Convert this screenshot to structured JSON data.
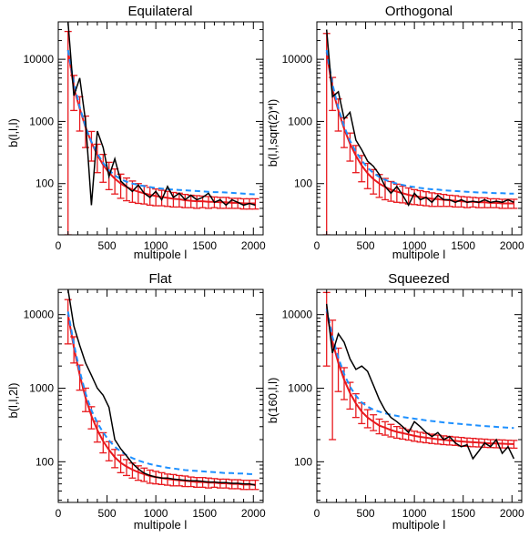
{
  "colors": {
    "data": "#000000",
    "theory": "#1e90ff",
    "sim_mean": "#e8191e",
    "frame": "#000000"
  },
  "chart_data": [
    {
      "type": "line",
      "title": "Equilateral",
      "xlabel": "multipole l",
      "ylabel": "b(l,l,l)",
      "yscale": "log",
      "xlim": [
        0,
        2100
      ],
      "ylim": [
        15,
        40000
      ],
      "xticks": [
        0,
        500,
        1000,
        1500,
        2000
      ],
      "yticks": [
        100,
        1000,
        10000
      ],
      "x": [
        100,
        160,
        220,
        280,
        340,
        400,
        460,
        520,
        580,
        640,
        700,
        760,
        820,
        880,
        940,
        1000,
        1060,
        1120,
        1180,
        1240,
        1300,
        1360,
        1420,
        1480,
        1540,
        1600,
        1660,
        1720,
        1780,
        1840,
        1900,
        1960,
        2020
      ],
      "series": [
        {
          "role": "data",
          "values": [
            40000,
            2600,
            5000,
            1000,
            45,
            700,
            380,
            130,
            250,
            110,
            90,
            75,
            95,
            70,
            60,
            75,
            55,
            90,
            60,
            70,
            55,
            65,
            55,
            60,
            70,
            50,
            55,
            45,
            55,
            50,
            45,
            48,
            45
          ]
        },
        {
          "role": "theory",
          "values": [
            14000,
            4200,
            1700,
            820,
            470,
            305,
            215,
            165,
            135,
            118,
            107,
            100,
            95,
            91,
            88,
            85,
            83,
            81,
            80,
            79,
            78,
            77,
            76,
            75,
            74,
            73,
            73,
            72,
            71,
            70,
            69,
            68,
            67
          ]
        },
        {
          "role": "sim_mean",
          "values": [
            14000,
            3500,
            1600,
            800,
            460,
            290,
            200,
            150,
            120,
            100,
            88,
            80,
            74,
            70,
            66,
            63,
            61,
            59,
            57,
            56,
            54,
            53,
            52,
            52,
            51,
            51,
            50,
            50,
            49,
            49,
            48,
            48,
            48
          ],
          "errors": [
            13999,
            2000,
            900,
            420,
            230,
            140,
            95,
            70,
            52,
            42,
            35,
            30,
            26,
            23,
            21,
            19,
            17,
            16,
            15,
            14,
            13,
            12,
            12,
            11,
            11,
            10,
            10,
            10,
            9,
            9,
            9,
            9,
            9
          ]
        }
      ]
    },
    {
      "type": "line",
      "title": "Orthogonal",
      "xlabel": "multipole l",
      "ylabel": "b(l,l,sqrt(2)*l)",
      "yscale": "log",
      "xlim": [
        0,
        2100
      ],
      "ylim": [
        15,
        40000
      ],
      "xticks": [
        0,
        500,
        1000,
        1500,
        2000
      ],
      "yticks": [
        100,
        1000,
        10000
      ],
      "x": [
        100,
        160,
        220,
        280,
        340,
        400,
        460,
        520,
        580,
        640,
        700,
        760,
        820,
        880,
        940,
        1000,
        1060,
        1120,
        1180,
        1240,
        1300,
        1360,
        1420,
        1480,
        1540,
        1600,
        1660,
        1720,
        1780,
        1840,
        1900,
        1960,
        2020
      ],
      "series": [
        {
          "role": "data",
          "values": [
            30000,
            2500,
            3000,
            1100,
            1400,
            500,
            350,
            230,
            190,
            140,
            90,
            70,
            90,
            65,
            45,
            70,
            55,
            60,
            50,
            65,
            55,
            55,
            50,
            55,
            50,
            52,
            50,
            55,
            50,
            52,
            50,
            55,
            50
          ]
        },
        {
          "role": "theory",
          "values": [
            14000,
            4000,
            1650,
            830,
            490,
            325,
            235,
            180,
            148,
            128,
            115,
            106,
            100,
            95,
            91,
            88,
            85,
            83,
            81,
            80,
            78,
            77,
            76,
            75,
            74,
            73,
            72,
            72,
            71,
            70,
            70,
            69,
            69
          ]
        },
        {
          "role": "sim_mean",
          "values": [
            13000,
            3300,
            1500,
            760,
            440,
            280,
            195,
            147,
            118,
            100,
            88,
            80,
            74,
            70,
            66,
            63,
            61,
            59,
            57,
            56,
            55,
            54,
            53,
            52,
            51,
            51,
            50,
            50,
            49,
            49,
            48,
            48,
            48
          ],
          "errors": [
            12999,
            1800,
            800,
            380,
            210,
            130,
            88,
            64,
            50,
            40,
            33,
            28,
            24,
            21,
            19,
            17,
            16,
            15,
            14,
            13,
            12,
            11,
            11,
            10,
            10,
            9,
            9,
            9,
            8,
            8,
            8,
            8,
            8
          ]
        }
      ]
    },
    {
      "type": "line",
      "title": "Flat",
      "xlabel": "multipole l",
      "ylabel": "b(l,l,2l)",
      "yscale": "log",
      "xlim": [
        0,
        2100
      ],
      "ylim": [
        28,
        22000
      ],
      "xticks": [
        0,
        500,
        1000,
        1500,
        2000
      ],
      "yticks": [
        100,
        1000,
        10000
      ],
      "x": [
        100,
        160,
        220,
        280,
        340,
        400,
        460,
        520,
        580,
        640,
        700,
        760,
        820,
        880,
        940,
        1000,
        1060,
        1120,
        1180,
        1240,
        1300,
        1360,
        1420,
        1480,
        1540,
        1600,
        1660,
        1720,
        1780,
        1840,
        1900,
        1960,
        2020
      ],
      "series": [
        {
          "role": "data",
          "values": [
            22000,
            7000,
            3800,
            2200,
            1500,
            1000,
            800,
            550,
            200,
            150,
            120,
            95,
            80,
            70,
            65,
            62,
            60,
            60,
            58,
            57,
            56,
            55,
            55,
            54,
            53,
            53,
            52,
            52,
            51,
            51,
            50,
            50,
            48
          ]
        },
        {
          "role": "theory",
          "values": [
            11000,
            4000,
            1700,
            850,
            500,
            340,
            250,
            195,
            160,
            138,
            123,
            112,
            104,
            98,
            93,
            89,
            86,
            83,
            81,
            79,
            77,
            76,
            75,
            74,
            73,
            72,
            71,
            70,
            70,
            69,
            69,
            68,
            68
          ]
        },
        {
          "role": "sim_mean",
          "values": [
            10000,
            3600,
            1500,
            740,
            420,
            270,
            190,
            145,
            115,
            97,
            86,
            78,
            72,
            68,
            64,
            62,
            60,
            58,
            57,
            56,
            55,
            54,
            53,
            53,
            52,
            52,
            51,
            51,
            50,
            50,
            49,
            49,
            49
          ],
          "errors": [
            6000,
            1400,
            560,
            260,
            140,
            85,
            58,
            42,
            32,
            26,
            21,
            18,
            16,
            14,
            13,
            12,
            11,
            10,
            10,
            9,
            9,
            8,
            8,
            8,
            8,
            7,
            7,
            7,
            7,
            7,
            7,
            7,
            7
          ]
        }
      ]
    },
    {
      "type": "line",
      "title": "Squeezed",
      "xlabel": "multipole l",
      "ylabel": "b(160,l,l)",
      "yscale": "log",
      "xlim": [
        0,
        2100
      ],
      "ylim": [
        28,
        22000
      ],
      "xticks": [
        0,
        500,
        1000,
        1500,
        2000
      ],
      "yticks": [
        100,
        1000,
        10000
      ],
      "x": [
        100,
        160,
        220,
        280,
        340,
        400,
        460,
        520,
        580,
        640,
        700,
        760,
        820,
        880,
        940,
        1000,
        1060,
        1120,
        1180,
        1240,
        1300,
        1360,
        1420,
        1480,
        1540,
        1600,
        1660,
        1720,
        1780,
        1840,
        1900,
        1960,
        2020
      ],
      "series": [
        {
          "role": "data",
          "values": [
            14000,
            3000,
            5500,
            4200,
            2500,
            1800,
            2000,
            1700,
            1100,
            700,
            500,
            400,
            350,
            300,
            250,
            350,
            300,
            250,
            220,
            250,
            200,
            220,
            180,
            160,
            170,
            110,
            140,
            180,
            160,
            200,
            130,
            160,
            110
          ]
        },
        {
          "role": "theory",
          "values": [
            12000,
            5000,
            2600,
            1550,
            1050,
            790,
            640,
            560,
            510,
            480,
            455,
            435,
            420,
            405,
            395,
            385,
            375,
            365,
            358,
            350,
            343,
            337,
            331,
            325,
            320,
            315,
            310,
            306,
            302,
            298,
            294,
            290,
            287
          ]
        },
        {
          "role": "sim_mean",
          "values": [
            11000,
            4300,
            2200,
            1300,
            860,
            620,
            480,
            400,
            350,
            310,
            290,
            270,
            255,
            245,
            235,
            225,
            218,
            212,
            207,
            202,
            198,
            195,
            192,
            189,
            186,
            184,
            182,
            180,
            178,
            177,
            176,
            175,
            174
          ],
          "errors": [
            9000,
            4100,
            1300,
            600,
            340,
            220,
            150,
            110,
            85,
            70,
            60,
            52,
            46,
            42,
            38,
            35,
            33,
            31,
            30,
            28,
            27,
            26,
            25,
            25,
            24,
            24,
            23,
            23,
            22,
            22,
            22,
            21,
            21
          ]
        }
      ]
    }
  ]
}
